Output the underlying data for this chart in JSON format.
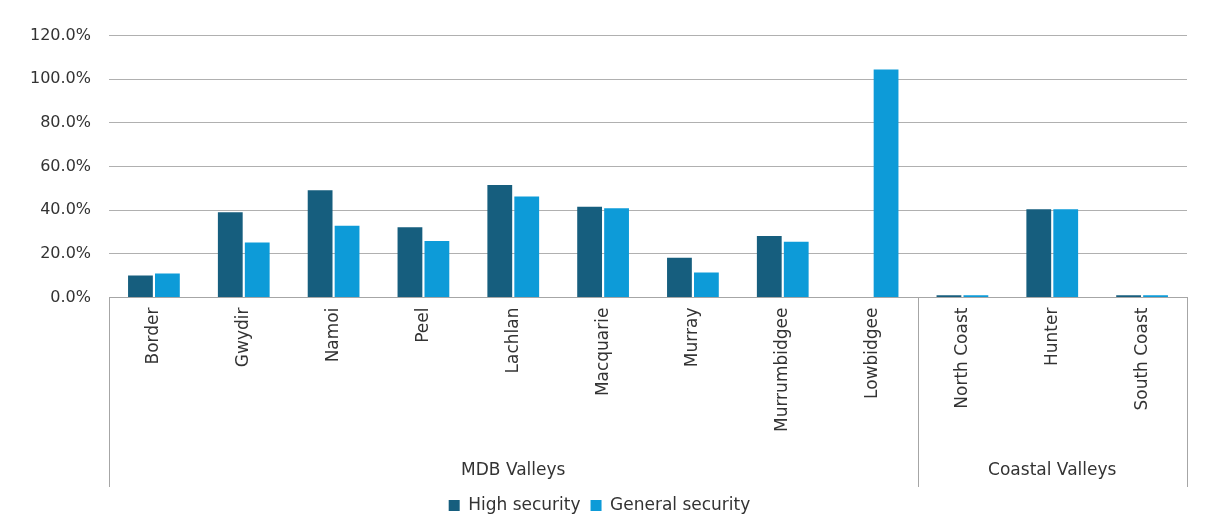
{
  "chart_data": {
    "type": "bar",
    "categories": [
      "Border",
      "Gwydir",
      "Namoi",
      "Peel",
      "Lachlan",
      "Macquarie",
      "Murray",
      "Murrumbidgee",
      "Lowbidgee",
      "North Coast",
      "Hunter",
      "South Coast"
    ],
    "series": [
      {
        "name": "High security",
        "color": "#165e7e",
        "values": [
          10.1,
          39.1,
          49.2,
          32.2,
          51.5,
          41.6,
          18.2,
          28.2,
          null,
          1.0,
          40.4,
          1.0
        ]
      },
      {
        "name": "General security",
        "color": "#0d9bd8",
        "values": [
          11.0,
          25.2,
          32.9,
          25.9,
          46.3,
          40.9,
          11.5,
          25.5,
          104.5,
          1.0,
          40.4,
          1.0
        ]
      }
    ],
    "ylim": [
      0,
      120
    ],
    "yticks": [
      {
        "value": 0,
        "label": "0.0%"
      },
      {
        "value": 20,
        "label": "20.0%"
      },
      {
        "value": 40,
        "label": "40.0%"
      },
      {
        "value": 60,
        "label": "60.0%"
      },
      {
        "value": 80,
        "label": "80.0%"
      },
      {
        "value": 100,
        "label": "100.0%"
      },
      {
        "value": 120,
        "label": "120.0%"
      }
    ],
    "annotations": [
      "MDB Valleys",
      "Coastal Valleys"
    ],
    "grid": "y",
    "legend": "bottom"
  }
}
